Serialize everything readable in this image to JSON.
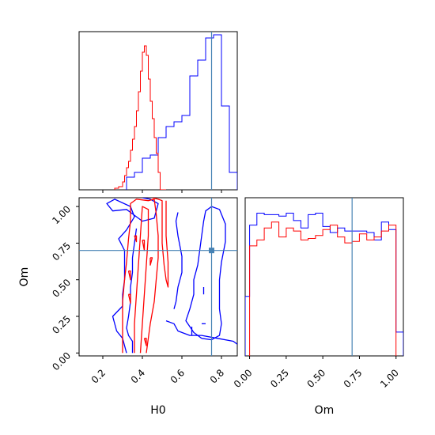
{
  "colors": {
    "red": "#ff0000",
    "blue": "#0000ff",
    "truth": "#4682b4",
    "frame": "#000000"
  },
  "chart_data": [
    {
      "type": "histogram",
      "panel": "H0 marginal (top-left)",
      "xlim": [
        0.08,
        0.88
      ],
      "ylim": [
        0,
        1
      ],
      "truth": 0.75,
      "red_edges": [
        0.26,
        0.28,
        0.3,
        0.31,
        0.32,
        0.33,
        0.34,
        0.35,
        0.36,
        0.37,
        0.38,
        0.39,
        0.4,
        0.41,
        0.42,
        0.43,
        0.44,
        0.45,
        0.46,
        0.47,
        0.48,
        0.49,
        0.5,
        0.51,
        0.52
      ],
      "red_counts": [
        0.01,
        0.02,
        0.05,
        0.09,
        0.14,
        0.18,
        0.25,
        0.32,
        0.4,
        0.5,
        0.62,
        0.75,
        0.87,
        0.91,
        0.85,
        0.7,
        0.56,
        0.45,
        0.33,
        0.23,
        0.11,
        0.0,
        0.0,
        0.0
      ],
      "blue_edges": [
        0.32,
        0.36,
        0.4,
        0.44,
        0.48,
        0.52,
        0.56,
        0.6,
        0.64,
        0.68,
        0.72,
        0.76,
        0.8,
        0.84,
        0.88
      ],
      "blue_counts": [
        0.08,
        0.11,
        0.2,
        0.22,
        0.33,
        0.4,
        0.43,
        0.47,
        0.72,
        0.82,
        0.96,
        0.98,
        0.53,
        0.11
      ]
    },
    {
      "type": "contour",
      "panel": "H0 vs Om (bottom-left)",
      "xlabel": "H0",
      "ylabel": "Om",
      "xlim": [
        0.08,
        0.88
      ],
      "ylim": [
        -0.02,
        1.06
      ],
      "xticks": [
        "0.2",
        "0.4",
        "0.6",
        "0.8"
      ],
      "xtick_values": [
        0.2,
        0.4,
        0.6,
        0.8
      ],
      "yticks": [
        "0.00",
        "0.25",
        "0.50",
        "0.75",
        "1.00"
      ],
      "ytick_values": [
        0.0,
        0.25,
        0.5,
        0.75,
        1.0
      ],
      "truth": {
        "x": 0.75,
        "y": 0.7
      },
      "red_contours": [
        [
          [
            0.3,
            0.0
          ],
          [
            0.3,
            0.1
          ],
          [
            0.3,
            0.2
          ],
          [
            0.3,
            0.35
          ],
          [
            0.31,
            0.5
          ],
          [
            0.32,
            0.62
          ],
          [
            0.33,
            0.78
          ],
          [
            0.34,
            0.9
          ],
          [
            0.34,
            1.02
          ],
          [
            0.37,
            1.05
          ],
          [
            0.43,
            1.04
          ],
          [
            0.46,
            1.05
          ],
          [
            0.47,
            0.95
          ],
          [
            0.48,
            0.8
          ],
          [
            0.48,
            0.65
          ],
          [
            0.47,
            0.5
          ],
          [
            0.46,
            0.35
          ],
          [
            0.44,
            0.2
          ],
          [
            0.43,
            0.1
          ],
          [
            0.42,
            0.0
          ]
        ],
        [
          [
            0.36,
            0.0
          ],
          [
            0.36,
            0.2
          ],
          [
            0.37,
            0.4
          ],
          [
            0.38,
            0.6
          ],
          [
            0.39,
            0.8
          ],
          [
            0.4,
            1.0
          ],
          [
            0.43,
            0.98
          ],
          [
            0.43,
            0.8
          ],
          [
            0.42,
            0.6
          ],
          [
            0.41,
            0.4
          ],
          [
            0.4,
            0.2
          ],
          [
            0.39,
            0.0
          ]
        ],
        [
          [
            0.45,
            1.06
          ],
          [
            0.48,
            1.05
          ],
          [
            0.5,
            1.04
          ],
          [
            0.5,
            0.9
          ],
          [
            0.5,
            0.75
          ],
          [
            0.51,
            0.6
          ],
          [
            0.52,
            0.5
          ],
          [
            0.53,
            0.45
          ],
          [
            0.53,
            0.62
          ],
          [
            0.52,
            0.8
          ],
          [
            0.52,
            0.95
          ],
          [
            0.52,
            1.04
          ]
        ],
        [
          [
            0.41,
            0.1
          ],
          [
            0.42,
            0.05
          ],
          [
            0.42,
            0.1
          ],
          [
            0.41,
            0.1
          ]
        ],
        [
          [
            0.33,
            0.4
          ],
          [
            0.34,
            0.34
          ],
          [
            0.34,
            0.4
          ],
          [
            0.33,
            0.4
          ]
        ],
        [
          [
            0.33,
            0.56
          ],
          [
            0.34,
            0.5
          ],
          [
            0.34,
            0.56
          ],
          [
            0.33,
            0.56
          ]
        ],
        [
          [
            0.36,
            0.8
          ],
          [
            0.37,
            0.76
          ],
          [
            0.37,
            0.8
          ],
          [
            0.36,
            0.8
          ]
        ],
        [
          [
            0.4,
            0.77
          ],
          [
            0.41,
            0.7
          ],
          [
            0.41,
            0.77
          ],
          [
            0.4,
            0.77
          ]
        ],
        [
          [
            0.44,
            0.65
          ],
          [
            0.44,
            0.6
          ],
          [
            0.45,
            0.65
          ],
          [
            0.44,
            0.65
          ]
        ]
      ],
      "blue_contours": [
        [
          [
            0.32,
            0.0
          ],
          [
            0.3,
            0.1
          ],
          [
            0.27,
            0.15
          ],
          [
            0.25,
            0.25
          ],
          [
            0.3,
            0.32
          ],
          [
            0.3,
            0.4
          ],
          [
            0.31,
            0.5
          ],
          [
            0.31,
            0.6
          ],
          [
            0.31,
            0.7
          ],
          [
            0.28,
            0.78
          ],
          [
            0.32,
            0.84
          ],
          [
            0.36,
            0.93
          ],
          [
            0.34,
            1.0
          ],
          [
            0.26,
            1.05
          ],
          [
            0.22,
            1.02
          ],
          [
            0.25,
            0.97
          ],
          [
            0.32,
            0.98
          ],
          [
            0.35,
            0.95
          ],
          [
            0.4,
            0.9
          ],
          [
            0.46,
            0.92
          ],
          [
            0.48,
            1.02
          ],
          [
            0.44,
            1.05
          ],
          [
            0.4,
            1.06
          ]
        ],
        [
          [
            0.35,
            0.0
          ],
          [
            0.35,
            0.08
          ],
          [
            0.33,
            0.12
          ],
          [
            0.32,
            0.17
          ],
          [
            0.33,
            0.25
          ],
          [
            0.34,
            0.35
          ],
          [
            0.34,
            0.45
          ],
          [
            0.35,
            0.55
          ],
          [
            0.35,
            0.65
          ],
          [
            0.36,
            0.75
          ],
          [
            0.37,
            0.85
          ]
        ],
        [
          [
            0.7,
            0.1
          ],
          [
            0.66,
            0.14
          ],
          [
            0.62,
            0.22
          ],
          [
            0.64,
            0.3
          ],
          [
            0.66,
            0.4
          ],
          [
            0.66,
            0.5
          ],
          [
            0.68,
            0.6
          ],
          [
            0.69,
            0.7
          ],
          [
            0.7,
            0.8
          ],
          [
            0.71,
            0.9
          ],
          [
            0.72,
            0.97
          ],
          [
            0.75,
            1.0
          ],
          [
            0.79,
            0.98
          ],
          [
            0.82,
            0.88
          ],
          [
            0.82,
            0.76
          ],
          [
            0.8,
            0.62
          ],
          [
            0.79,
            0.5
          ],
          [
            0.79,
            0.4
          ],
          [
            0.79,
            0.3
          ],
          [
            0.8,
            0.2
          ],
          [
            0.79,
            0.12
          ],
          [
            0.75,
            0.09
          ],
          [
            0.7,
            0.1
          ]
        ],
        [
          [
            0.52,
            0.22
          ],
          [
            0.56,
            0.2
          ],
          [
            0.58,
            0.15
          ],
          [
            0.64,
            0.12
          ],
          [
            0.7,
            0.12
          ],
          [
            0.78,
            0.1
          ],
          [
            0.86,
            0.08
          ],
          [
            0.88,
            0.06
          ]
        ],
        [
          [
            0.58,
            0.96
          ],
          [
            0.57,
            0.9
          ],
          [
            0.58,
            0.8
          ],
          [
            0.6,
            0.66
          ],
          [
            0.6,
            0.55
          ],
          [
            0.58,
            0.45
          ],
          [
            0.57,
            0.35
          ],
          [
            0.56,
            0.3
          ]
        ],
        [
          [
            0.65,
            0.18
          ],
          [
            0.65,
            0.12
          ]
        ],
        [
          [
            0.7,
            0.2
          ],
          [
            0.72,
            0.2
          ]
        ],
        [
          [
            0.71,
            0.4
          ],
          [
            0.71,
            0.45
          ]
        ]
      ]
    },
    {
      "type": "histogram",
      "panel": "Om marginal (bottom-right)",
      "xlabel": "Om",
      "xlim": [
        -0.03,
        1.05
      ],
      "ylim": [
        0,
        1
      ],
      "xticks": [
        "0.00",
        "0.25",
        "0.50",
        "0.75",
        "1.00"
      ],
      "xtick_values": [
        0.0,
        0.25,
        0.5,
        0.75,
        1.0
      ],
      "truth": 0.7,
      "red_edges": [
        0.0,
        0.05,
        0.1,
        0.15,
        0.2,
        0.25,
        0.3,
        0.35,
        0.4,
        0.45,
        0.5,
        0.55,
        0.6,
        0.65,
        0.7,
        0.75,
        0.8,
        0.85,
        0.9,
        0.95,
        1.0
      ],
      "red_counts": [
        0.74,
        0.78,
        0.86,
        0.9,
        0.8,
        0.86,
        0.84,
        0.78,
        0.79,
        0.81,
        0.85,
        0.88,
        0.8,
        0.76,
        0.77,
        0.82,
        0.78,
        0.8,
        0.84,
        0.88
      ],
      "blue_edges": [
        -0.03,
        0.0,
        0.05,
        0.1,
        0.15,
        0.2,
        0.25,
        0.3,
        0.35,
        0.4,
        0.45,
        0.5,
        0.55,
        0.6,
        0.65,
        0.7,
        0.75,
        0.8,
        0.85,
        0.9,
        0.95,
        1.0,
        1.05
      ],
      "blue_counts": [
        0.4,
        0.88,
        0.96,
        0.95,
        0.95,
        0.94,
        0.96,
        0.91,
        0.86,
        0.95,
        0.96,
        0.87,
        0.83,
        0.86,
        0.84,
        0.84,
        0.84,
        0.83,
        0.78,
        0.9,
        0.85,
        0.16
      ]
    }
  ],
  "panels": {
    "bottom_left": {
      "xlabel": "H0",
      "ylabel": "Om"
    },
    "bottom_right": {
      "xlabel": "Om"
    }
  }
}
